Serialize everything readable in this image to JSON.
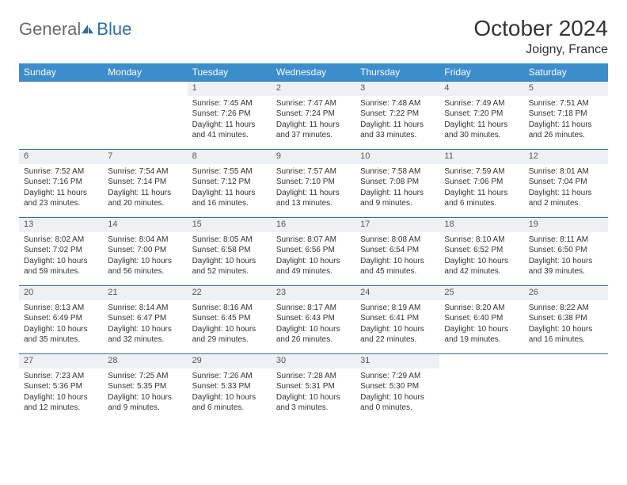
{
  "logo": {
    "general": "General",
    "blue": "Blue"
  },
  "title": "October 2024",
  "location": "Joigny, France",
  "colors": {
    "header_bg": "#3c8dcc",
    "header_text": "#ffffff",
    "daynum_bg": "#eef1f4",
    "accent": "#2f6fa8",
    "page_bg": "#ffffff",
    "text": "#333333",
    "logo_gray": "#6b6b6b"
  },
  "fonts": {
    "title_size_pt": 21,
    "location_size_pt": 12,
    "weekday_size_pt": 9,
    "daynum_size_pt": 8,
    "body_size_pt": 7.5
  },
  "weekdays": [
    "Sunday",
    "Monday",
    "Tuesday",
    "Wednesday",
    "Thursday",
    "Friday",
    "Saturday"
  ],
  "weeks": [
    [
      null,
      null,
      {
        "n": "1",
        "sr": "Sunrise: 7:45 AM",
        "ss": "Sunset: 7:26 PM",
        "dl": "Daylight: 11 hours and 41 minutes."
      },
      {
        "n": "2",
        "sr": "Sunrise: 7:47 AM",
        "ss": "Sunset: 7:24 PM",
        "dl": "Daylight: 11 hours and 37 minutes."
      },
      {
        "n": "3",
        "sr": "Sunrise: 7:48 AM",
        "ss": "Sunset: 7:22 PM",
        "dl": "Daylight: 11 hours and 33 minutes."
      },
      {
        "n": "4",
        "sr": "Sunrise: 7:49 AM",
        "ss": "Sunset: 7:20 PM",
        "dl": "Daylight: 11 hours and 30 minutes."
      },
      {
        "n": "5",
        "sr": "Sunrise: 7:51 AM",
        "ss": "Sunset: 7:18 PM",
        "dl": "Daylight: 11 hours and 26 minutes."
      }
    ],
    [
      {
        "n": "6",
        "sr": "Sunrise: 7:52 AM",
        "ss": "Sunset: 7:16 PM",
        "dl": "Daylight: 11 hours and 23 minutes."
      },
      {
        "n": "7",
        "sr": "Sunrise: 7:54 AM",
        "ss": "Sunset: 7:14 PM",
        "dl": "Daylight: 11 hours and 20 minutes."
      },
      {
        "n": "8",
        "sr": "Sunrise: 7:55 AM",
        "ss": "Sunset: 7:12 PM",
        "dl": "Daylight: 11 hours and 16 minutes."
      },
      {
        "n": "9",
        "sr": "Sunrise: 7:57 AM",
        "ss": "Sunset: 7:10 PM",
        "dl": "Daylight: 11 hours and 13 minutes."
      },
      {
        "n": "10",
        "sr": "Sunrise: 7:58 AM",
        "ss": "Sunset: 7:08 PM",
        "dl": "Daylight: 11 hours and 9 minutes."
      },
      {
        "n": "11",
        "sr": "Sunrise: 7:59 AM",
        "ss": "Sunset: 7:06 PM",
        "dl": "Daylight: 11 hours and 6 minutes."
      },
      {
        "n": "12",
        "sr": "Sunrise: 8:01 AM",
        "ss": "Sunset: 7:04 PM",
        "dl": "Daylight: 11 hours and 2 minutes."
      }
    ],
    [
      {
        "n": "13",
        "sr": "Sunrise: 8:02 AM",
        "ss": "Sunset: 7:02 PM",
        "dl": "Daylight: 10 hours and 59 minutes."
      },
      {
        "n": "14",
        "sr": "Sunrise: 8:04 AM",
        "ss": "Sunset: 7:00 PM",
        "dl": "Daylight: 10 hours and 56 minutes."
      },
      {
        "n": "15",
        "sr": "Sunrise: 8:05 AM",
        "ss": "Sunset: 6:58 PM",
        "dl": "Daylight: 10 hours and 52 minutes."
      },
      {
        "n": "16",
        "sr": "Sunrise: 8:07 AM",
        "ss": "Sunset: 6:56 PM",
        "dl": "Daylight: 10 hours and 49 minutes."
      },
      {
        "n": "17",
        "sr": "Sunrise: 8:08 AM",
        "ss": "Sunset: 6:54 PM",
        "dl": "Daylight: 10 hours and 45 minutes."
      },
      {
        "n": "18",
        "sr": "Sunrise: 8:10 AM",
        "ss": "Sunset: 6:52 PM",
        "dl": "Daylight: 10 hours and 42 minutes."
      },
      {
        "n": "19",
        "sr": "Sunrise: 8:11 AM",
        "ss": "Sunset: 6:50 PM",
        "dl": "Daylight: 10 hours and 39 minutes."
      }
    ],
    [
      {
        "n": "20",
        "sr": "Sunrise: 8:13 AM",
        "ss": "Sunset: 6:49 PM",
        "dl": "Daylight: 10 hours and 35 minutes."
      },
      {
        "n": "21",
        "sr": "Sunrise: 8:14 AM",
        "ss": "Sunset: 6:47 PM",
        "dl": "Daylight: 10 hours and 32 minutes."
      },
      {
        "n": "22",
        "sr": "Sunrise: 8:16 AM",
        "ss": "Sunset: 6:45 PM",
        "dl": "Daylight: 10 hours and 29 minutes."
      },
      {
        "n": "23",
        "sr": "Sunrise: 8:17 AM",
        "ss": "Sunset: 6:43 PM",
        "dl": "Daylight: 10 hours and 26 minutes."
      },
      {
        "n": "24",
        "sr": "Sunrise: 8:19 AM",
        "ss": "Sunset: 6:41 PM",
        "dl": "Daylight: 10 hours and 22 minutes."
      },
      {
        "n": "25",
        "sr": "Sunrise: 8:20 AM",
        "ss": "Sunset: 6:40 PM",
        "dl": "Daylight: 10 hours and 19 minutes."
      },
      {
        "n": "26",
        "sr": "Sunrise: 8:22 AM",
        "ss": "Sunset: 6:38 PM",
        "dl": "Daylight: 10 hours and 16 minutes."
      }
    ],
    [
      {
        "n": "27",
        "sr": "Sunrise: 7:23 AM",
        "ss": "Sunset: 5:36 PM",
        "dl": "Daylight: 10 hours and 12 minutes."
      },
      {
        "n": "28",
        "sr": "Sunrise: 7:25 AM",
        "ss": "Sunset: 5:35 PM",
        "dl": "Daylight: 10 hours and 9 minutes."
      },
      {
        "n": "29",
        "sr": "Sunrise: 7:26 AM",
        "ss": "Sunset: 5:33 PM",
        "dl": "Daylight: 10 hours and 6 minutes."
      },
      {
        "n": "30",
        "sr": "Sunrise: 7:28 AM",
        "ss": "Sunset: 5:31 PM",
        "dl": "Daylight: 10 hours and 3 minutes."
      },
      {
        "n": "31",
        "sr": "Sunrise: 7:29 AM",
        "ss": "Sunset: 5:30 PM",
        "dl": "Daylight: 10 hours and 0 minutes."
      },
      null,
      null
    ]
  ]
}
